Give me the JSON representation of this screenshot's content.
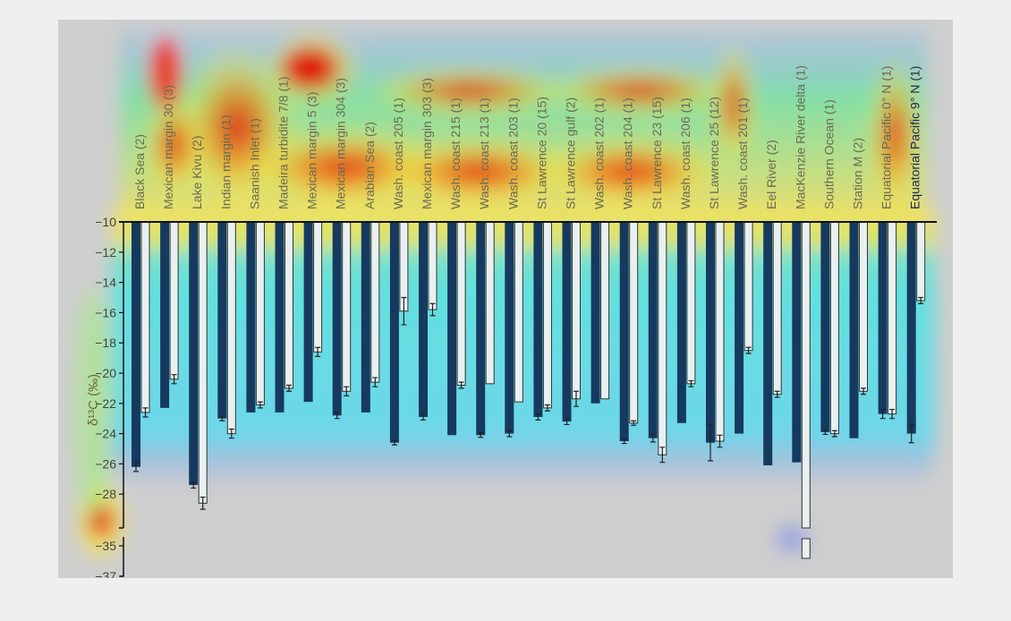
{
  "chart_data": {
    "type": "bar",
    "title": "",
    "xlabel": "",
    "ylabel": "δ¹³C (‰)",
    "ylim": [
      -37,
      -10
    ],
    "y_ticks": [
      "-10",
      "-12",
      "-14",
      "-16",
      "-18",
      "-20",
      "-22",
      "-24",
      "-26",
      "-28",
      "-35",
      "-37"
    ],
    "axis_break": {
      "from": -30,
      "to": -35
    },
    "categories": [
      "Black Sea (2)",
      "Mexican margin 30 (3)",
      "Lake Kivu (2)",
      "Indian margin (1)",
      "Saanish Inlet (1)",
      "Madeira turbidite 7/8 (1)",
      "Mexican margin 5 (3)",
      "Mexican margin 304 (3)",
      "Arabian Sea (2)",
      "Wash. coast 205 (1)",
      "Mexican margin 303 (3)",
      "Wash. coast 215 (1)",
      "Wash. coast 213 (1)",
      "Wash. coast 203 (1)",
      "St Lawrence 20 (15)",
      "St Lawrence gulf (2)",
      "Wash. coast 202 (1)",
      "Wash. coast 204 (1)",
      "St Lawrence 23 (15)",
      "Wash. coast 206 (1)",
      "St Lawrence 25 (12)",
      "Wash. coast 201 (1)",
      "Eel River (2)",
      "MacKenzie River delta (1)",
      "Southern Ocean (1)",
      "Station M (2)",
      "Equatorial Pacific 0° N (1)",
      "Equatorial Pacific 9° N (1)"
    ],
    "series": [
      {
        "name": "",
        "color": "#163a5f",
        "values": [
          -26.2,
          -22.3,
          -27.4,
          -23.0,
          -22.6,
          -22.6,
          -21.9,
          -22.8,
          -22.6,
          -24.6,
          -22.9,
          -24.1,
          -24.1,
          -24.0,
          -22.9,
          -23.2,
          -22.0,
          -24.5,
          -24.3,
          -23.3,
          -24.6,
          -24.0,
          -26.1,
          -25.9,
          -23.9,
          -24.3,
          -22.7,
          -24.0
        ]
      },
      {
        "name": "",
        "color": "#e9f0f2",
        "values": [
          -22.6,
          -20.4,
          -28.6,
          -24.0,
          -22.1,
          -21.0,
          -18.6,
          -21.2,
          -20.6,
          -15.9,
          -15.8,
          -20.8,
          -20.7,
          -21.9,
          -22.3,
          -21.7,
          -21.7,
          -23.3,
          -25.4,
          -20.7,
          -24.5,
          -18.5,
          -21.4,
          -35.8,
          -24.0,
          -21.2,
          -22.7,
          -15.2
        ]
      }
    ],
    "error_bars": [
      [
        0.3,
        0.3
      ],
      [
        0,
        0.3
      ],
      [
        0.2,
        0.4
      ],
      [
        0.15,
        0.3
      ],
      [
        0,
        0.2
      ],
      [
        0,
        0.2
      ],
      [
        0,
        0.3
      ],
      [
        0.2,
        0.3
      ],
      [
        0,
        0.3
      ],
      [
        0.15,
        0.9
      ],
      [
        0.2,
        0.4
      ],
      [
        0,
        0.2
      ],
      [
        0.15,
        0
      ],
      [
        0.2,
        0
      ],
      [
        0.2,
        0.2
      ],
      [
        0.2,
        0.5
      ],
      [
        0,
        0
      ],
      [
        0.15,
        0.15
      ],
      [
        0.25,
        0.5
      ],
      [
        0,
        0.2
      ],
      [
        1.2,
        0.4
      ],
      [
        0,
        0.2
      ],
      [
        0,
        0.2
      ],
      [
        0,
        0
      ],
      [
        0.15,
        0.2
      ],
      [
        0,
        0.2
      ],
      [
        0.3,
        0.3
      ],
      [
        0.6,
        0.2
      ]
    ],
    "grid": false,
    "legend": "none",
    "overlay": "heatmap (red to blue) over chart"
  }
}
